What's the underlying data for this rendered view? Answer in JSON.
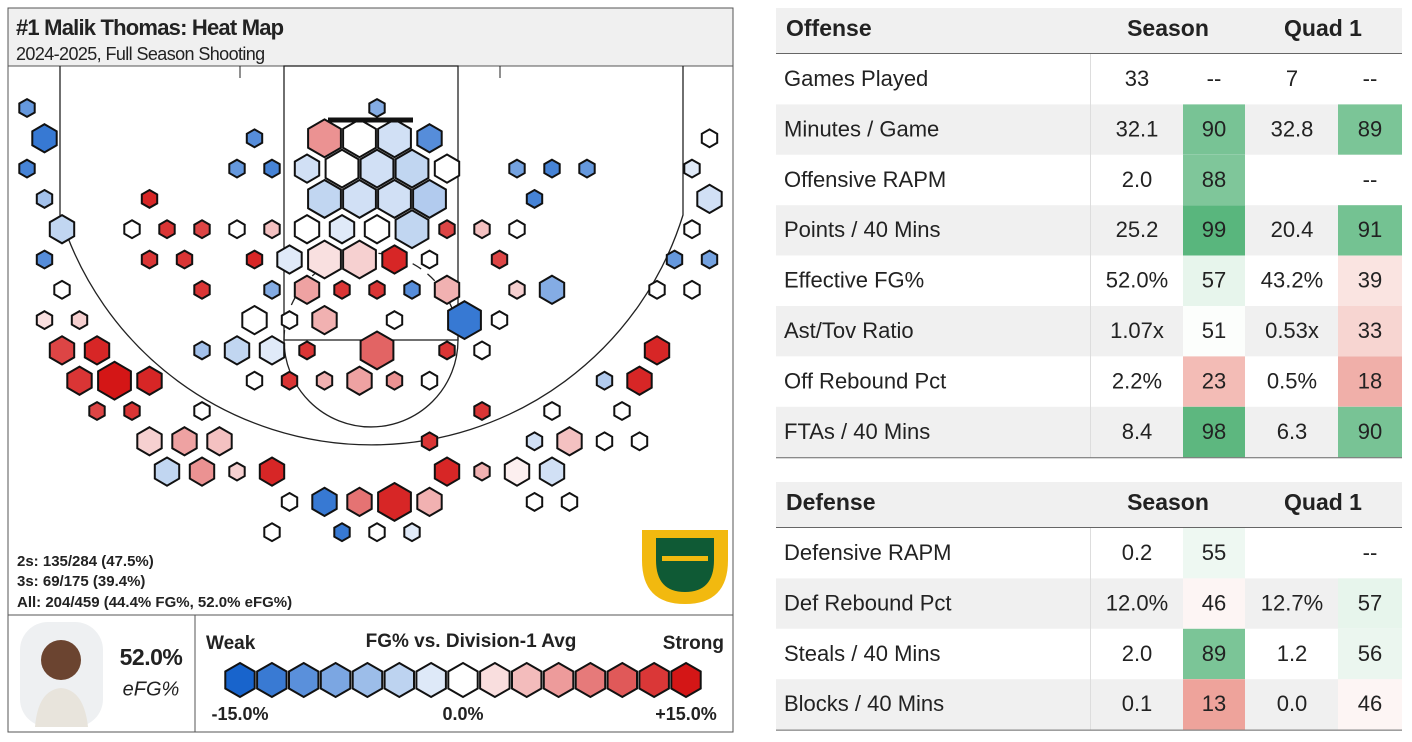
{
  "chart_data": {
    "type": "hexbin",
    "title": "#1 Malik Thomas: Heat Map",
    "subtitle": "2024-2025, Full Season Shooting",
    "stats": [
      "2s: 135/284 (47.5%)",
      "3s: 69/175 (39.4%)",
      "All: 204/459 (44.4% FG%, 52.0% eFG%)"
    ],
    "efg": "52.0%",
    "efg_label": "eFG%",
    "legend_title": "FG% vs. Division-1 Avg",
    "legend_low": "Weak",
    "legend_high": "Strong",
    "legend_ticks": [
      {
        "value": -15,
        "label": "-15.0%"
      },
      {
        "value": 0,
        "label": "0.0%"
      },
      {
        "value": 15,
        "label": "+15.0%"
      }
    ],
    "bin_x": [
      0,
      1,
      0,
      1,
      2,
      1,
      2,
      1,
      3,
      2,
      4,
      5,
      3,
      7,
      4,
      6,
      7,
      9,
      11,
      8,
      10,
      12,
      14,
      15,
      17,
      19,
      21,
      23,
      24,
      26,
      28,
      30,
      29,
      31,
      31,
      29,
      33,
      35,
      33,
      35,
      36,
      34,
      30,
      26,
      26,
      23,
      14,
      18,
      20,
      22,
      10,
      10,
      12,
      14,
      13,
      15,
      17,
      19,
      21,
      23,
      20,
      16,
      24,
      25,
      24,
      22,
      20,
      18,
      16,
      14,
      10,
      13,
      15,
      17,
      21,
      15,
      17,
      19,
      21,
      23,
      14,
      16,
      18,
      20,
      22,
      24,
      17,
      19,
      21,
      23,
      16,
      18,
      20,
      22,
      24,
      17,
      19,
      21,
      23,
      13,
      14,
      12,
      20,
      28,
      30,
      32,
      29,
      39,
      38,
      39,
      38,
      37,
      39,
      36,
      38,
      28,
      26,
      27,
      28,
      30,
      27,
      7,
      6,
      8,
      10,
      12,
      7,
      9,
      13
    ],
    "bin_y": [
      0,
      1,
      2,
      3,
      4,
      5,
      6,
      7,
      7,
      8,
      8,
      9,
      9,
      9,
      10,
      10,
      11,
      11,
      11,
      12,
      12,
      12,
      12,
      13,
      13,
      13,
      13,
      13,
      12,
      12,
      12,
      12,
      13,
      13,
      11,
      11,
      11,
      11,
      9,
      9,
      8,
      10,
      10,
      8,
      10,
      11,
      14,
      14,
      14,
      14,
      10,
      8,
      8,
      8,
      9,
      9,
      9,
      9,
      9,
      9,
      8,
      8,
      8,
      7,
      6,
      6,
      6,
      6,
      6,
      6,
      6,
      7,
      7,
      7,
      7,
      5,
      5,
      5,
      5,
      5,
      4,
      4,
      4,
      4,
      4,
      4,
      3,
      3,
      3,
      3,
      2,
      2,
      2,
      2,
      2,
      1,
      1,
      1,
      1,
      1,
      2,
      2,
      0,
      2,
      2,
      2,
      3,
      1,
      2,
      3,
      4,
      5,
      5,
      6,
      6,
      4,
      4,
      5,
      6,
      6,
      7,
      3,
      4,
      4,
      4,
      4,
      5,
      5,
      5
    ],
    "attempts": [
      2,
      5,
      2,
      2,
      5,
      2,
      2,
      2,
      2,
      5,
      5,
      9,
      5,
      5,
      2,
      2,
      5,
      5,
      5,
      5,
      5,
      2,
      5,
      2,
      5,
      5,
      9,
      5,
      5,
      2,
      5,
      5,
      2,
      2,
      5,
      2,
      2,
      2,
      2,
      5,
      5,
      2,
      2,
      2,
      2,
      2,
      2,
      2,
      2,
      2,
      2,
      2,
      5,
      5,
      2,
      2,
      2,
      5,
      2,
      2,
      9,
      2,
      2,
      9,
      5,
      2,
      2,
      2,
      5,
      2,
      2,
      5,
      2,
      5,
      2,
      5,
      9,
      9,
      5,
      2,
      2,
      5,
      5,
      5,
      9,
      2,
      9,
      9,
      9,
      9,
      5,
      9,
      9,
      9,
      5,
      9,
      9,
      9,
      5,
      2,
      2,
      2,
      2,
      2,
      2,
      2,
      2,
      2,
      2,
      5,
      2,
      2,
      2,
      2,
      2,
      2,
      2,
      2,
      2,
      5,
      2,
      2,
      2,
      2,
      2,
      2,
      2,
      2,
      2
    ],
    "efg_diff": [
      -10,
      -13,
      -12,
      -6,
      -4,
      -11,
      0,
      2,
      3,
      12,
      14,
      15,
      13,
      14,
      12,
      13,
      3,
      6,
      4,
      -4,
      7,
      3,
      14,
      0,
      -13,
      9,
      14,
      5,
      14,
      5,
      1,
      -3,
      0,
      0,
      4,
      -3,
      0,
      0,
      -5,
      14,
      14,
      0,
      0,
      0,
      13,
      13,
      0,
      -13,
      0,
      -2,
      0,
      -6,
      -4,
      -2,
      0,
      13,
      5,
      6,
      7,
      0,
      10,
      13,
      13,
      -13,
      5,
      -11,
      13,
      13,
      6,
      -8,
      13,
      0,
      0,
      5,
      0,
      -2,
      2,
      3,
      14,
      0,
      4,
      0,
      -2,
      0,
      -4,
      12,
      -4,
      -3,
      -3,
      -5,
      -3,
      0,
      -3,
      -4,
      0,
      7,
      0,
      -3,
      -11,
      -11,
      -12,
      -10,
      -8,
      -9,
      -12,
      -10,
      -12,
      0,
      -2,
      -3,
      0,
      -10,
      -9,
      0,
      0,
      0,
      4,
      12,
      3,
      -8,
      0,
      14,
      0,
      13,
      12,
      0,
      13,
      13,
      14
    ]
  },
  "table": {
    "offense": {
      "headers": [
        "Offense",
        "Season",
        "Quad 1"
      ],
      "rows": [
        [
          "Games Played",
          "33",
          "--",
          "7",
          "--"
        ],
        [
          "Minutes / Game",
          "32.1",
          90,
          "32.8",
          89
        ],
        [
          "Offensive RAPM",
          "2.0",
          88,
          null,
          "--"
        ],
        [
          "Points / 40 Mins",
          "25.2",
          99,
          "20.4",
          91
        ],
        [
          "Effective FG%",
          "52.0%",
          57,
          "43.2%",
          39
        ],
        [
          "Ast/Tov Ratio",
          "1.07x",
          51,
          "0.53x",
          33
        ],
        [
          "Off Rebound Pct",
          "2.2%",
          23,
          "0.5%",
          18
        ],
        [
          "FTAs / 40 Mins",
          "8.4",
          98,
          "6.3",
          90
        ]
      ]
    },
    "defense": {
      "headers": [
        "Defense",
        "Season",
        "Quad 1"
      ],
      "rows": [
        [
          "Defensive RAPM",
          "0.2",
          55,
          null,
          "--"
        ],
        [
          "Def Rebound Pct",
          "12.0%",
          46,
          "12.7%",
          57
        ],
        [
          "Steals / 40 Mins",
          "2.0",
          89,
          "1.2",
          56
        ],
        [
          "Blocks / 40 Mins",
          "0.1",
          13,
          "0.0",
          46
        ]
      ]
    }
  }
}
